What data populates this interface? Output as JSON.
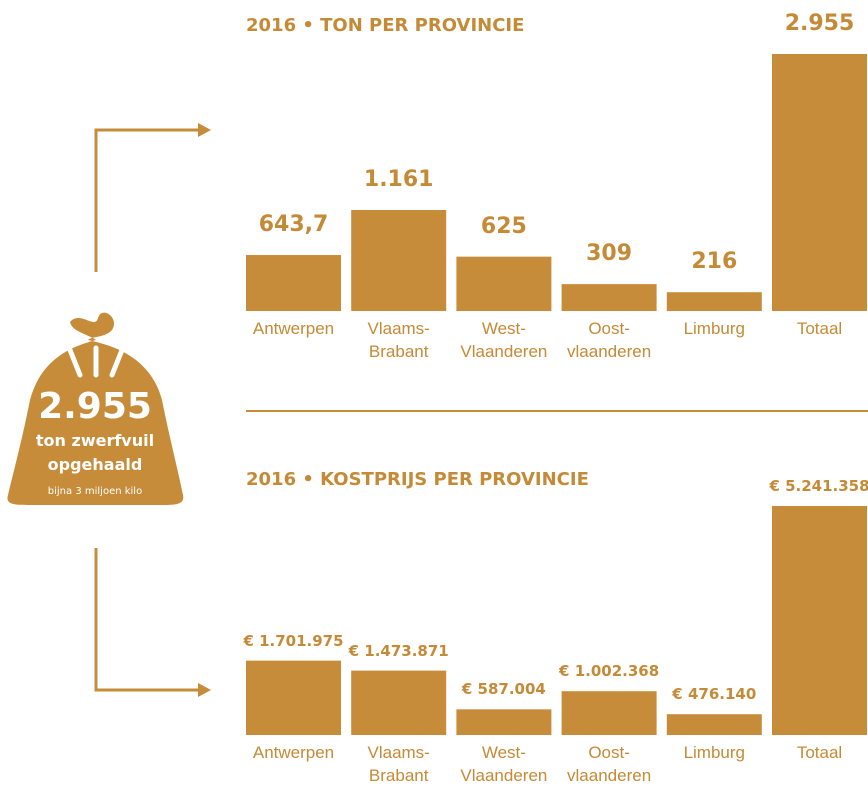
{
  "chart_data": [
    {
      "type": "bar",
      "title": "2016 • TON PER PROVINCIE",
      "categories": [
        "Antwerpen",
        "Vlaams-Brabant",
        "West-Vlaanderen",
        "Oost-vlaanderen",
        "Limburg",
        "Totaal"
      ],
      "values": [
        643.7,
        1161,
        625,
        309,
        216,
        2955
      ],
      "value_labels": [
        "643,7",
        "1.161",
        "625",
        "309",
        "216",
        "2.955"
      ],
      "color": "#c68c3a",
      "ylim": [
        0,
        2955
      ]
    },
    {
      "type": "bar",
      "title": "2016 • KOSTPRIJS PER PROVINCIE",
      "categories": [
        "Antwerpen",
        "Vlaams-Brabant",
        "West-Vlaanderen",
        "Oost-vlaanderen",
        "Limburg",
        "Totaal"
      ],
      "values": [
        1701975,
        1473871,
        587004,
        1002368,
        476140,
        5241358
      ],
      "value_labels": [
        "€ 1.701.975",
        "€ 1.473.871",
        "€ 587.004",
        "€ 1.002.368",
        "€ 476.140",
        "€ 5.241.358"
      ],
      "color": "#c68c3a",
      "ylim": [
        0,
        5241358
      ]
    }
  ],
  "bag": {
    "number": "2.955",
    "line1": "ton zwerfvuil",
    "line2": "opgehaald",
    "note": "bijna 3 miljoen kilo"
  }
}
